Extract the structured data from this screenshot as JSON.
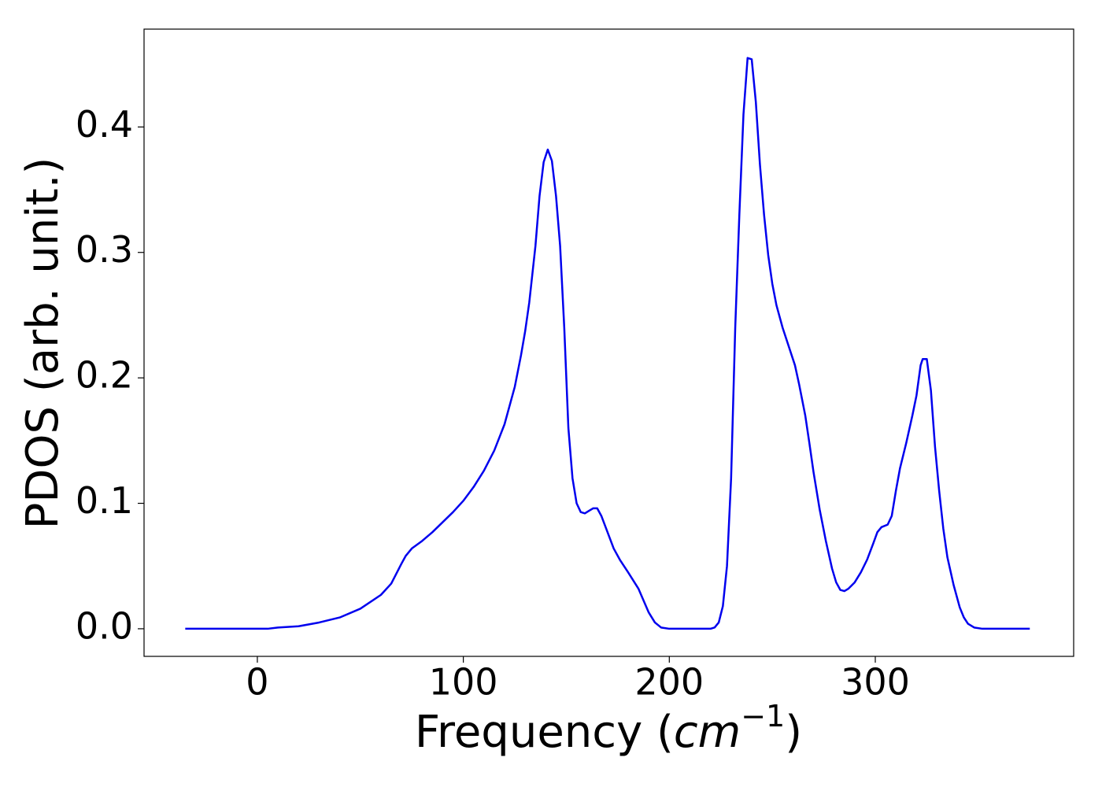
{
  "chart_data": {
    "type": "line",
    "xlabel": [
      "Frequency (",
      "cm",
      "−1",
      ")"
    ],
    "ylabel": "PDOS (arb. unit.)",
    "xlim": [
      -55,
      396.3
    ],
    "xticks": [
      0,
      100,
      200,
      300
    ],
    "ylim": [
      -0.022,
      0.478
    ],
    "yticks": [
      {
        "value": 0,
        "label": "0.0"
      },
      0.1,
      0.2,
      0.3,
      0.4
    ],
    "grid": false,
    "x": [
      -35,
      5,
      10,
      20,
      30,
      40,
      50,
      60,
      65,
      70,
      72,
      75,
      80,
      85,
      90,
      95,
      100,
      105,
      110,
      115,
      120,
      125,
      128,
      130,
      132,
      135,
      137,
      139,
      141,
      143,
      145,
      147,
      149,
      151,
      153,
      155,
      157,
      159,
      161,
      163,
      165,
      167,
      170,
      173,
      176,
      180,
      185,
      190,
      193,
      196,
      200,
      220,
      222,
      224,
      226,
      228,
      230,
      232,
      234,
      236,
      238,
      240,
      242,
      244,
      246,
      248,
      250,
      252,
      255,
      258,
      261,
      263,
      266,
      268,
      270,
      273,
      276,
      279,
      281,
      283,
      285,
      287,
      290,
      293,
      296,
      299,
      301,
      303,
      306,
      308,
      310,
      312,
      315,
      318,
      320,
      322,
      323,
      325,
      327,
      329,
      331,
      333,
      335,
      338,
      341,
      343,
      345,
      348,
      352,
      375
    ],
    "series": [
      {
        "color": "#0000ee",
        "values": [
          0,
          0,
          0.001,
          0.002,
          0.005,
          0.009,
          0.016,
          0.027,
          0.036,
          0.052,
          0.058,
          0.064,
          0.07,
          0.077,
          0.085,
          0.093,
          0.102,
          0.113,
          0.126,
          0.142,
          0.163,
          0.193,
          0.218,
          0.237,
          0.26,
          0.305,
          0.345,
          0.372,
          0.382,
          0.373,
          0.345,
          0.305,
          0.24,
          0.16,
          0.12,
          0.1,
          0.093,
          0.092,
          0.094,
          0.096,
          0.096,
          0.09,
          0.077,
          0.064,
          0.055,
          0.045,
          0.032,
          0.013,
          0.005,
          0.001,
          0,
          0,
          0.001,
          0.005,
          0.018,
          0.05,
          0.12,
          0.24,
          0.33,
          0.41,
          0.455,
          0.454,
          0.42,
          0.37,
          0.33,
          0.298,
          0.275,
          0.258,
          0.24,
          0.225,
          0.21,
          0.195,
          0.17,
          0.148,
          0.125,
          0.095,
          0.07,
          0.048,
          0.037,
          0.031,
          0.03,
          0.032,
          0.037,
          0.045,
          0.055,
          0.068,
          0.077,
          0.081,
          0.083,
          0.09,
          0.11,
          0.128,
          0.148,
          0.17,
          0.186,
          0.21,
          0.215,
          0.215,
          0.19,
          0.145,
          0.11,
          0.08,
          0.057,
          0.035,
          0.017,
          0.009,
          0.004,
          0.001,
          0,
          0
        ]
      }
    ]
  }
}
